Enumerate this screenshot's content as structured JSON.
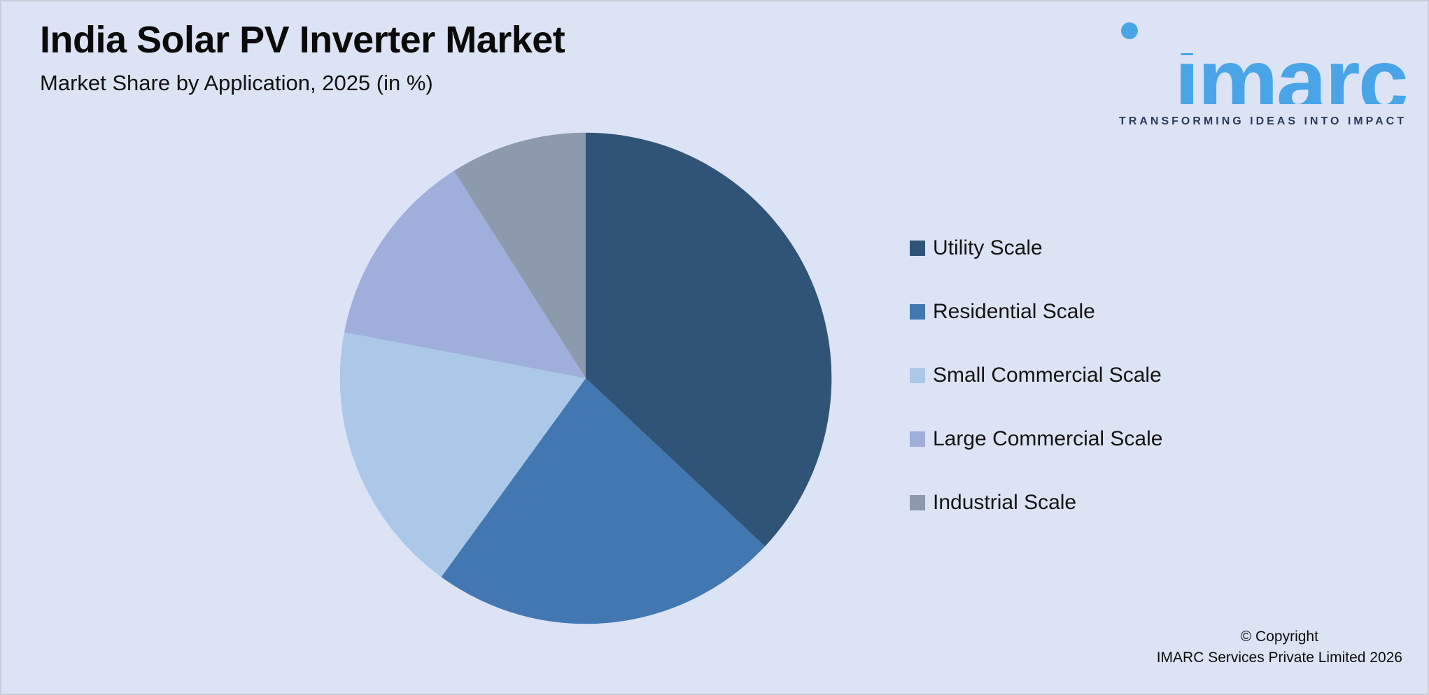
{
  "header": {
    "title": "India Solar PV Inverter Market",
    "subtitle": "Market Share by Application, 2025 (in %)"
  },
  "logo": {
    "text": "imarc",
    "tagline": "TRANSFORMING IDEAS INTO IMPACT"
  },
  "footer": {
    "copyright_line1": "© Copyright",
    "copyright_line2": "IMARC Services Private Limited 2026"
  },
  "colors": {
    "background": "#DCE3F5",
    "logo_blue": "#49A5E7",
    "tagline_navy": "#2B3B5C"
  },
  "chart_data": {
    "type": "pie",
    "title": "India Solar PV Inverter Market — Market Share by Application, 2025 (in %)",
    "start_angle_deg": 0,
    "direction": "clockwise",
    "legend_position": "right",
    "labels_shown": false,
    "series": [
      {
        "name": "Utility Scale",
        "value": 37,
        "color": "#2F5477"
      },
      {
        "name": "Residential Scale",
        "value": 23,
        "color": "#4277B2"
      },
      {
        "name": "Small Commercial Scale",
        "value": 18,
        "color": "#ABC8E8"
      },
      {
        "name": "Large Commercial Scale",
        "value": 13,
        "color": "#9FAEDB"
      },
      {
        "name": "Industrial Scale",
        "value": 9,
        "color": "#8D99AC"
      }
    ]
  }
}
